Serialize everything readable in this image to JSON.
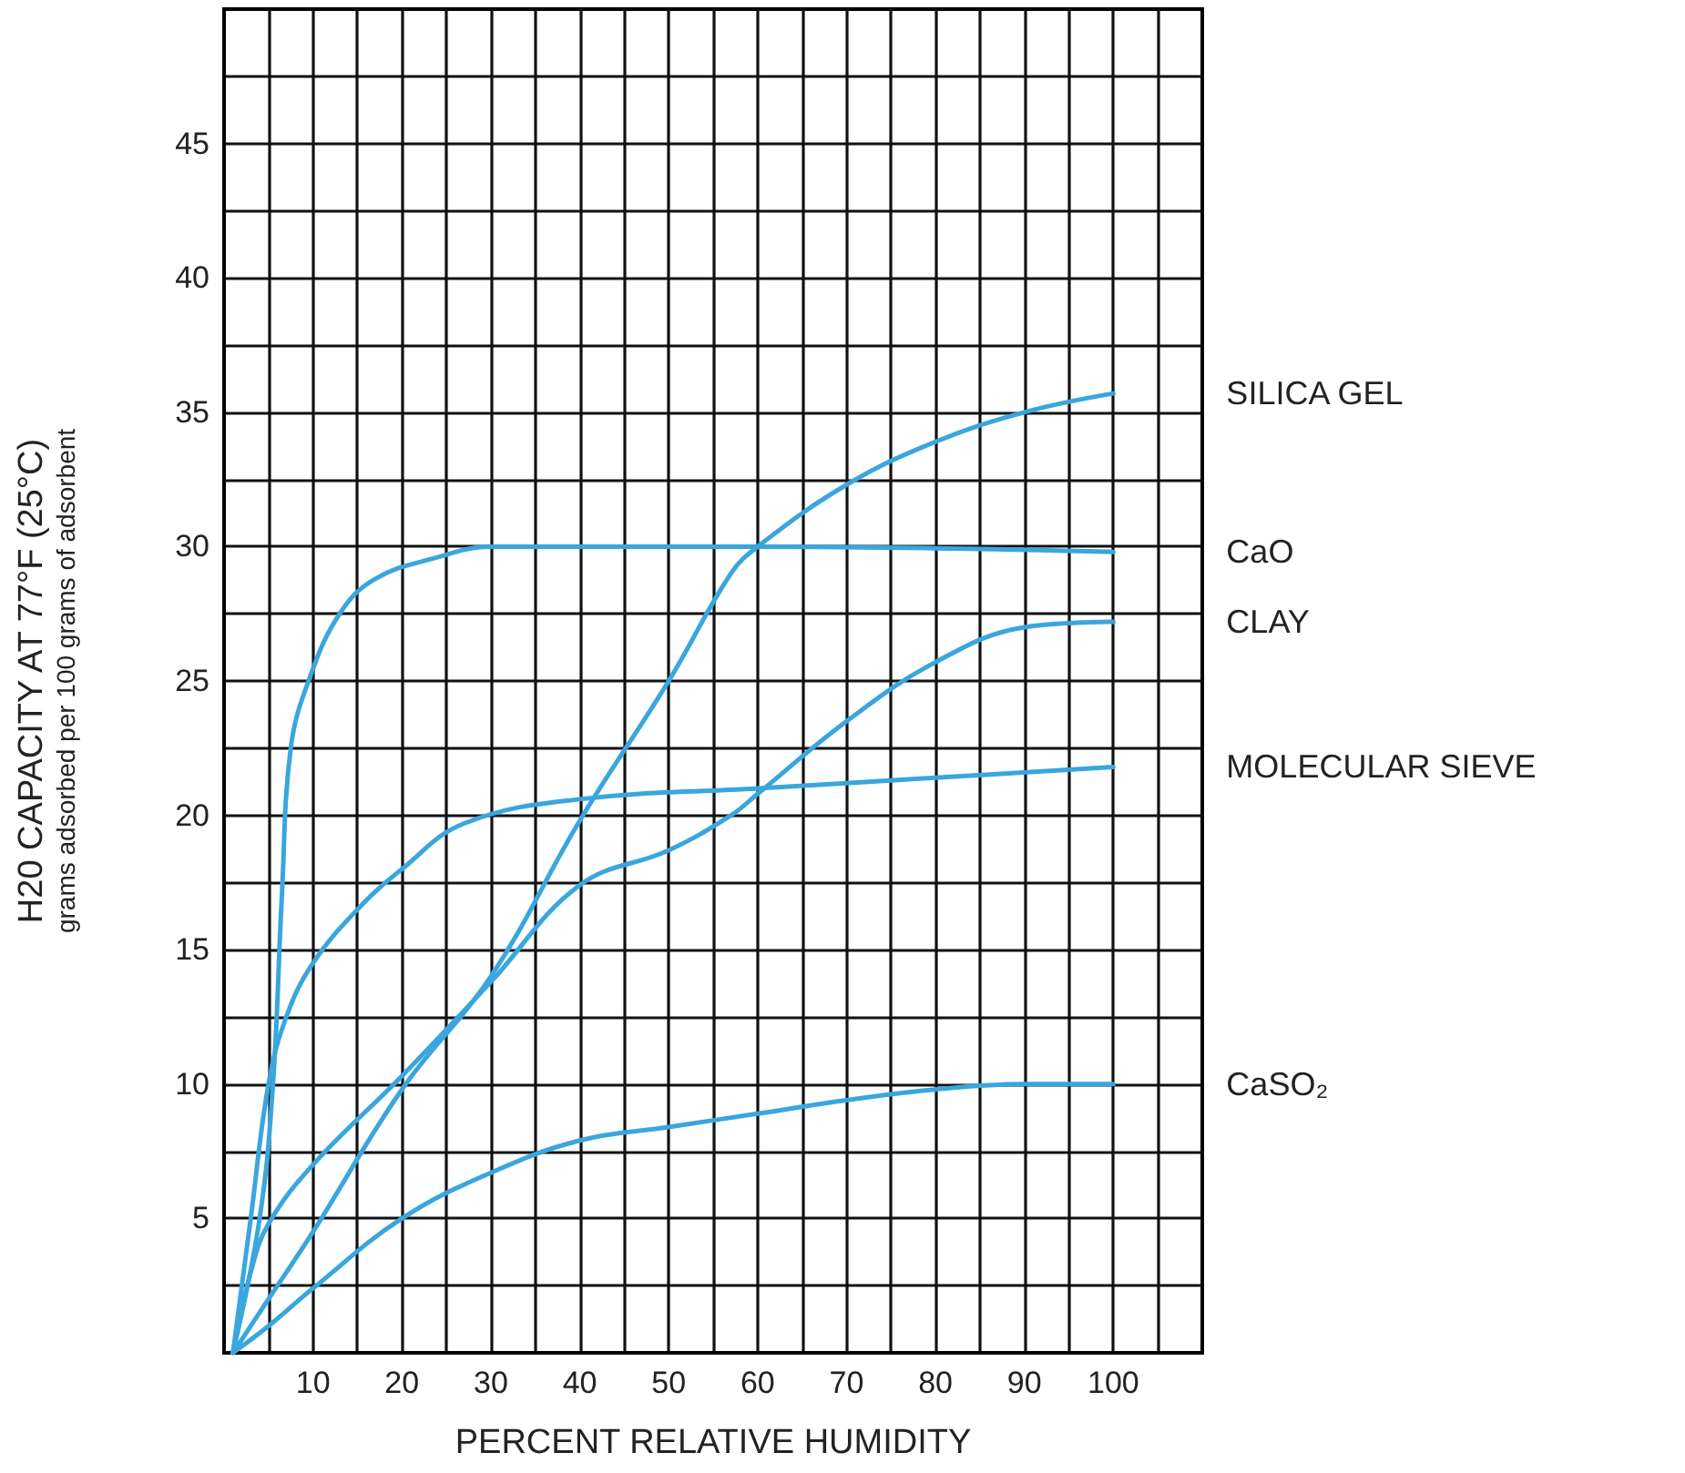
{
  "chart_data": {
    "type": "line",
    "xlabel": "PERCENT RELATIVE HUMIDITY",
    "ylabel": "H20 CAPACITY AT 77°F (25°C)",
    "annotations": [
      "grams adsorbed per 100 grams of adsorbent"
    ],
    "xlim": [
      0,
      110
    ],
    "ylim": [
      0,
      50
    ],
    "xticks": [
      {
        "value": 5,
        "label": null
      },
      10,
      {
        "value": 15,
        "label": null
      },
      20,
      {
        "value": 25,
        "label": null
      },
      30,
      {
        "value": 35,
        "label": null
      },
      40,
      {
        "value": 45,
        "label": null
      },
      50,
      {
        "value": 55,
        "label": null
      },
      60,
      {
        "value": 65,
        "label": null
      },
      70,
      {
        "value": 75,
        "label": null
      },
      80,
      {
        "value": 85,
        "label": null
      },
      90,
      {
        "value": 95,
        "label": null
      },
      100,
      {
        "value": 105,
        "label": null
      }
    ],
    "yticks": [
      {
        "value": 2.5,
        "label": null
      },
      5,
      {
        "value": 7.5,
        "label": null
      },
      10,
      {
        "value": 12.5,
        "label": null
      },
      15,
      {
        "value": 17.5,
        "label": null
      },
      20,
      {
        "value": 22.5,
        "label": null
      },
      25,
      {
        "value": 27.5,
        "label": null
      },
      30,
      {
        "value": 32.5,
        "label": null
      },
      35,
      {
        "value": 37.5,
        "label": null
      },
      40,
      {
        "value": 42.5,
        "label": null
      },
      45,
      {
        "value": 47.5,
        "label": null
      }
    ],
    "grid": true,
    "legend": false,
    "marker": "none",
    "line_style": "solid",
    "series": [
      {
        "name": "SILICA GEL",
        "color": "#3aa6dd",
        "x": [
          1,
          5,
          10,
          20,
          30,
          40,
          50,
          57,
          60,
          70,
          80,
          90,
          100
        ],
        "values": [
          0,
          2,
          4.5,
          9.8,
          14,
          19.8,
          25,
          29,
          30,
          32.3,
          33.9,
          35,
          35.7
        ]
      },
      {
        "name": "CaO",
        "color": "#3aa6dd",
        "x": [
          1,
          4,
          5.5,
          6.5,
          7.5,
          9.5,
          13,
          17,
          24,
          30,
          60,
          100
        ],
        "values": [
          0,
          5,
          10,
          17,
          22.5,
          25,
          27.5,
          28.8,
          29.6,
          30,
          30,
          29.8
        ]
      },
      {
        "name": "CLAY",
        "color": "#3aa6dd",
        "x": [
          1,
          3,
          5,
          10,
          20,
          30,
          40,
          50,
          57,
          60,
          70,
          80,
          90,
          100
        ],
        "values": [
          0,
          3,
          4.8,
          7,
          10.3,
          13.8,
          17.4,
          18.7,
          20,
          20.8,
          23.5,
          25.7,
          27,
          27.2
        ]
      },
      {
        "name": "MOLECULAR SIEVE",
        "color": "#3aa6dd",
        "x": [
          1,
          3,
          5,
          7,
          10,
          15,
          20,
          27,
          40,
          60,
          80,
          100
        ],
        "values": [
          0,
          5,
          10,
          12.5,
          14.5,
          16.5,
          18,
          19.7,
          20.6,
          21,
          21.4,
          21.8
        ]
      },
      {
        "name": "CaSO₂",
        "color": "#3aa6dd",
        "x": [
          1,
          5,
          10,
          20,
          30,
          40,
          50,
          60,
          70,
          80,
          90,
          100
        ],
        "values": [
          0,
          1,
          2.4,
          5,
          6.7,
          7.9,
          8.4,
          8.9,
          9.4,
          9.8,
          10,
          10
        ]
      }
    ]
  }
}
